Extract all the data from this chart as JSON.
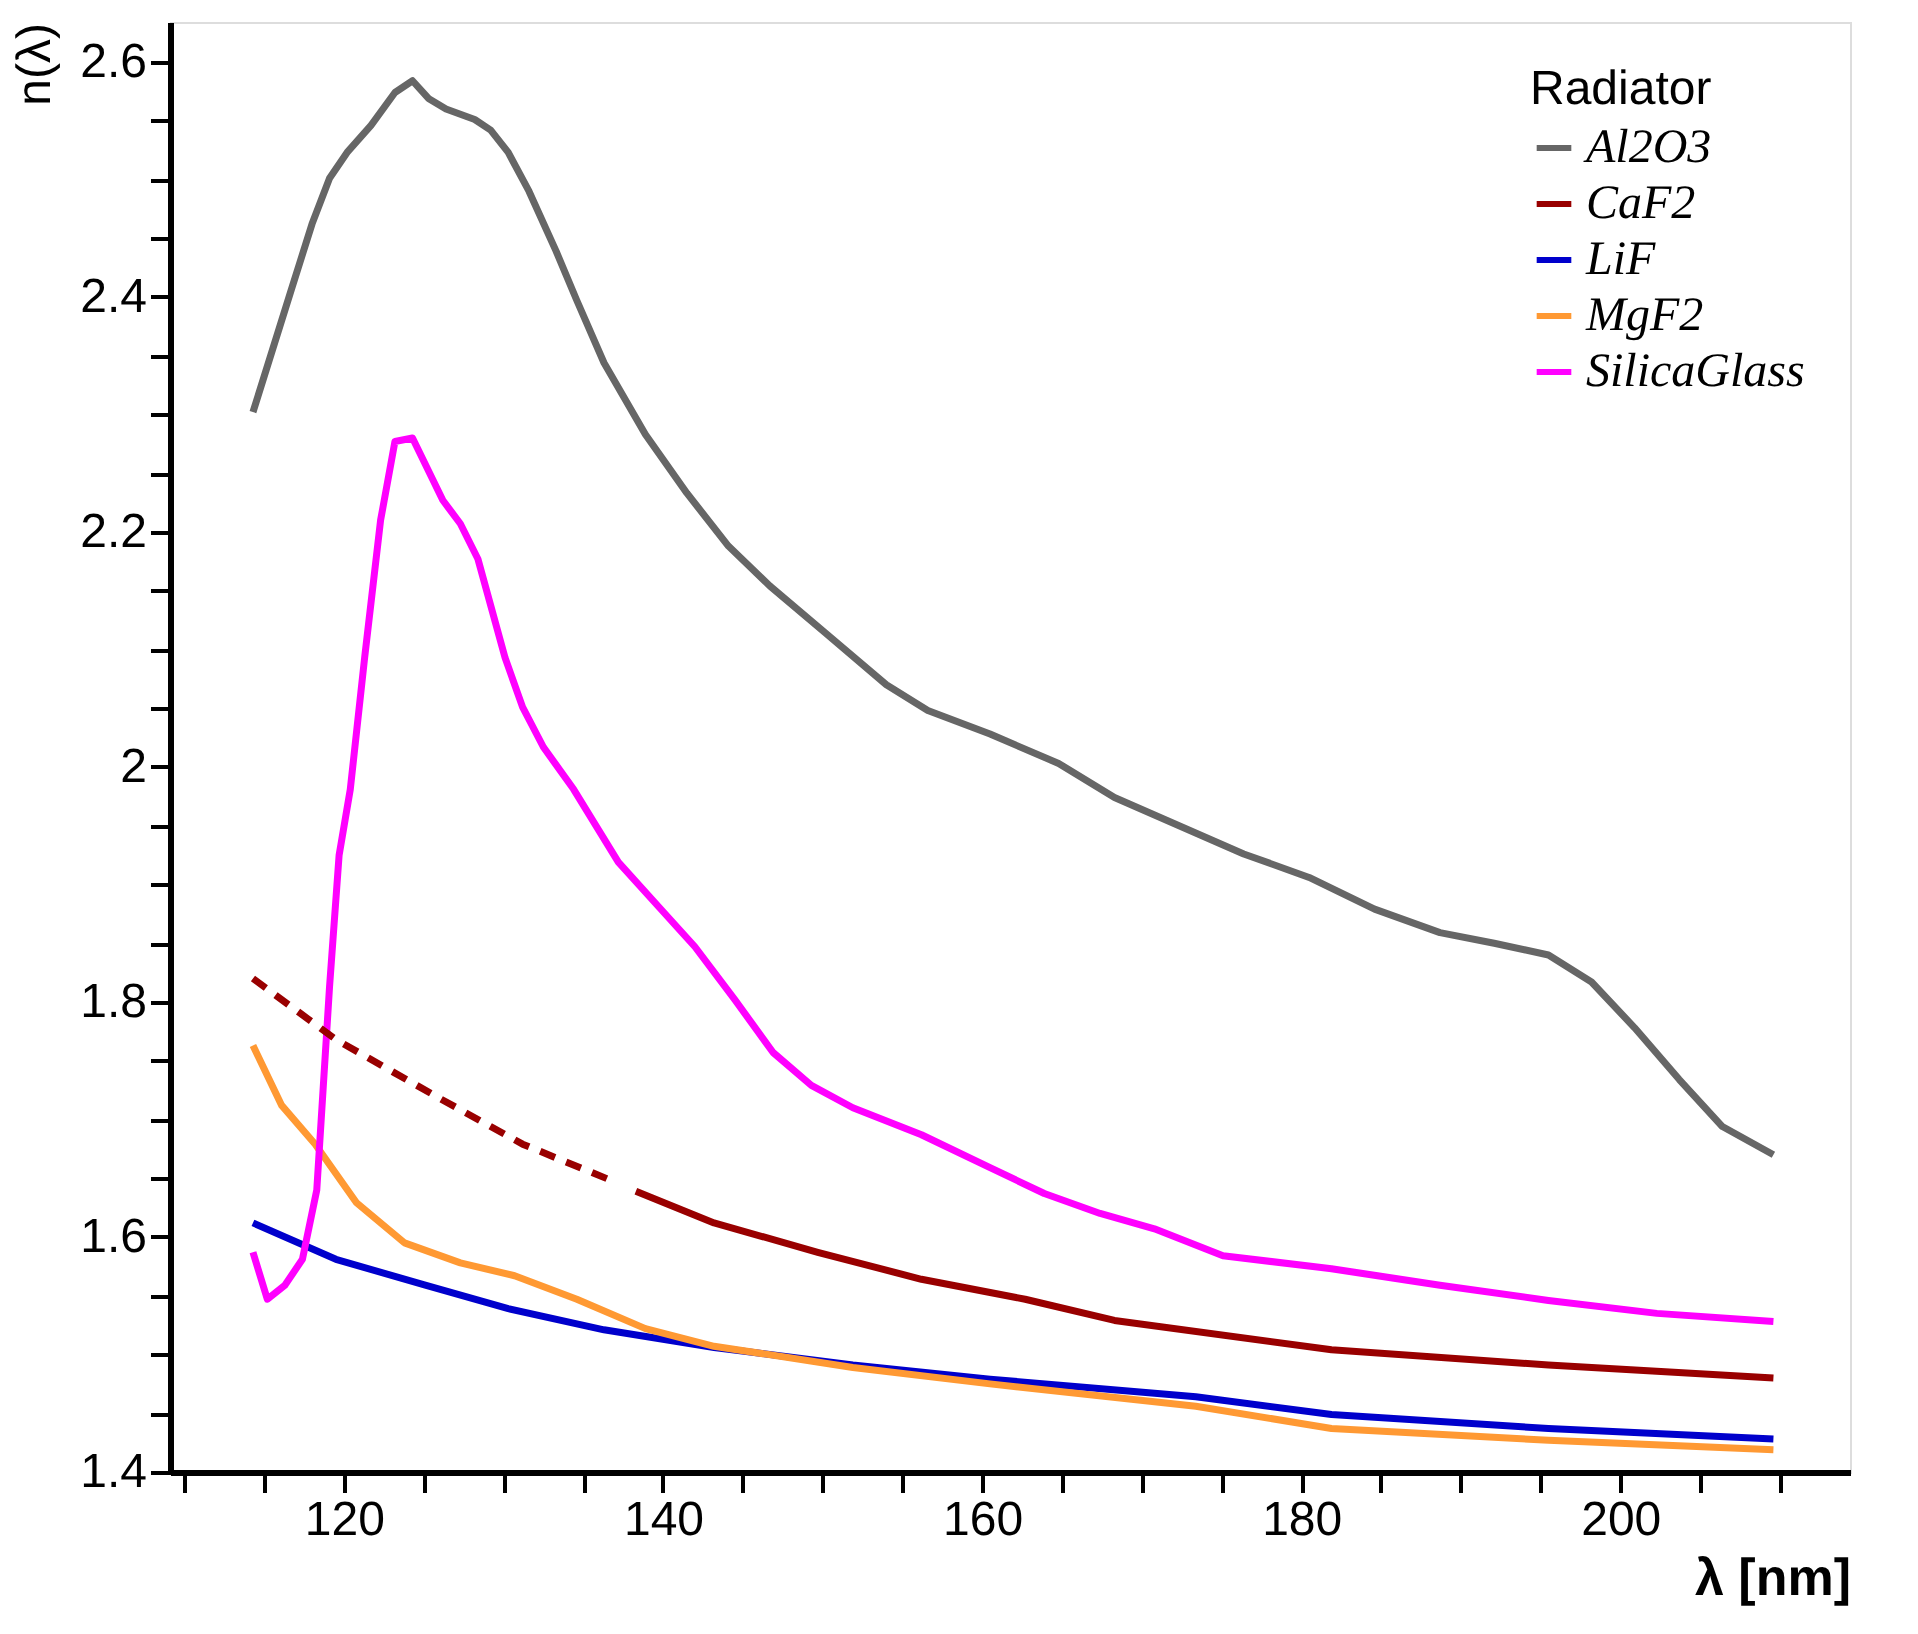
{
  "chart_data": {
    "type": "line",
    "xlabel": "λ [nm]",
    "ylabel": "n(λ)",
    "legend_title": "Radiator",
    "legend": "top right",
    "grid": false,
    "line_style": "solid",
    "marker": "none",
    "xlim": [
      109.1,
      214.4
    ],
    "ylim": [
      1.4,
      2.634
    ],
    "xticks": [
      {
        "value": 110,
        "label": null
      },
      {
        "value": 115,
        "label": null
      },
      120,
      {
        "value": 125,
        "label": null
      },
      {
        "value": 130,
        "label": null
      },
      {
        "value": 135,
        "label": null
      },
      140,
      {
        "value": 145,
        "label": null
      },
      {
        "value": 150,
        "label": null
      },
      {
        "value": 155,
        "label": null
      },
      160,
      {
        "value": 165,
        "label": null
      },
      {
        "value": 170,
        "label": null
      },
      {
        "value": 175,
        "label": null
      },
      180,
      {
        "value": 185,
        "label": null
      },
      {
        "value": 190,
        "label": null
      },
      {
        "value": 195,
        "label": null
      },
      200,
      {
        "value": 205,
        "label": null
      },
      {
        "value": 210,
        "label": null
      }
    ],
    "yticks": [
      1.4,
      {
        "value": 1.45,
        "label": null
      },
      {
        "value": 1.5,
        "label": null
      },
      {
        "value": 1.55,
        "label": null
      },
      1.6,
      {
        "value": 1.65,
        "label": null
      },
      {
        "value": 1.7,
        "label": null
      },
      {
        "value": 1.75,
        "label": null
      },
      1.8,
      {
        "value": 1.85,
        "label": null
      },
      {
        "value": 1.9,
        "label": null
      },
      {
        "value": 1.95,
        "label": null
      },
      2,
      {
        "value": 2.05,
        "label": null
      },
      {
        "value": 2.1,
        "label": null
      },
      {
        "value": 2.15,
        "label": null
      },
      2.2,
      {
        "value": 2.25,
        "label": null
      },
      {
        "value": 2.3,
        "label": null
      },
      {
        "value": 2.35,
        "label": null
      },
      2.4,
      {
        "value": 2.45,
        "label": null
      },
      {
        "value": 2.5,
        "label": null
      },
      {
        "value": 2.55,
        "label": null
      },
      2.6
    ],
    "series": [
      {
        "name": "Al2O3",
        "color": "#666666",
        "x": [
          114.3,
          116.7,
          118.0,
          119.1,
          120.2,
          121.7,
          123.2,
          124.3,
          125.3,
          126.4,
          128.2,
          129.2,
          130.3,
          131.6,
          133.3,
          134.6,
          136.3,
          138.9,
          141.5,
          144.1,
          146.7,
          150.1,
          154.0,
          156.6,
          160.5,
          164.8,
          168.3,
          176.4,
          180.5,
          184.6,
          188.7,
          192.1,
          195.5,
          198.2,
          200.9,
          203.7,
          206.4,
          209.6
        ],
        "values": [
          2.302,
          2.406,
          2.462,
          2.501,
          2.523,
          2.546,
          2.574,
          2.584,
          2.569,
          2.56,
          2.551,
          2.542,
          2.523,
          2.49,
          2.439,
          2.397,
          2.344,
          2.283,
          2.233,
          2.188,
          2.154,
          2.115,
          2.07,
          2.048,
          2.028,
          2.003,
          1.974,
          1.926,
          1.906,
          1.879,
          1.859,
          1.85,
          1.84,
          1.817,
          1.778,
          1.734,
          1.694,
          1.67
        ]
      },
      {
        "name": "CaF2",
        "color": "#990000",
        "x": [
          138.3,
          143.2,
          149.7,
          156.2,
          162.7,
          168.3,
          181.9,
          195.5,
          209.6
        ],
        "values": [
          1.639,
          1.612,
          1.587,
          1.564,
          1.547,
          1.529,
          1.504,
          1.491,
          1.48
        ]
      },
      {
        "name": "LiF",
        "color": "#0000cc",
        "x": [
          114.3,
          119.5,
          125.1,
          130.3,
          136.3,
          143.2,
          151.9,
          160.5,
          173.4,
          181.9,
          195.5,
          209.6
        ],
        "values": [
          1.612,
          1.581,
          1.559,
          1.539,
          1.521,
          1.506,
          1.491,
          1.479,
          1.464,
          1.449,
          1.437,
          1.428
        ]
      },
      {
        "name": "MgF2",
        "color": "#ff9933",
        "x": [
          114.3,
          116.1,
          118.2,
          120.8,
          123.8,
          127.3,
          130.7,
          134.6,
          138.9,
          143.2,
          151.9,
          160.5,
          173.4,
          181.9,
          195.5,
          209.6
        ],
        "values": [
          1.763,
          1.712,
          1.679,
          1.629,
          1.595,
          1.578,
          1.567,
          1.547,
          1.522,
          1.507,
          1.489,
          1.475,
          1.456,
          1.437,
          1.427,
          1.419
        ]
      },
      {
        "name": "SilicaGlass",
        "color": "#ff00ff",
        "x": [
          114.3,
          115.2,
          116.3,
          117.4,
          118.3,
          119.1,
          119.7,
          120.4,
          121.3,
          122.3,
          123.2,
          124.3,
          126.2,
          127.3,
          128.4,
          130.1,
          131.2,
          132.5,
          134.4,
          137.2,
          139.8,
          142.0,
          144.5,
          146.9,
          149.3,
          151.9,
          156.2,
          160.5,
          163.9,
          167.4,
          170.8,
          175.1,
          181.9,
          188.7,
          195.5,
          202.3,
          209.6
        ],
        "values": [
          1.587,
          1.547,
          1.559,
          1.581,
          1.64,
          1.813,
          1.925,
          1.981,
          2.093,
          2.21,
          2.277,
          2.28,
          2.227,
          2.207,
          2.177,
          2.093,
          2.051,
          2.017,
          1.981,
          1.919,
          1.88,
          1.847,
          1.802,
          1.757,
          1.729,
          1.71,
          1.687,
          1.659,
          1.637,
          1.62,
          1.607,
          1.584,
          1.573,
          1.559,
          1.546,
          1.535,
          1.528
        ]
      },
      {
        "color": "#990000",
        "line_style": "dashed",
        "x": [
          114.3,
          119.5,
          126.0,
          131.2,
          136.6
        ],
        "values": [
          1.82,
          1.768,
          1.718,
          1.679,
          1.649
        ]
      }
    ]
  }
}
